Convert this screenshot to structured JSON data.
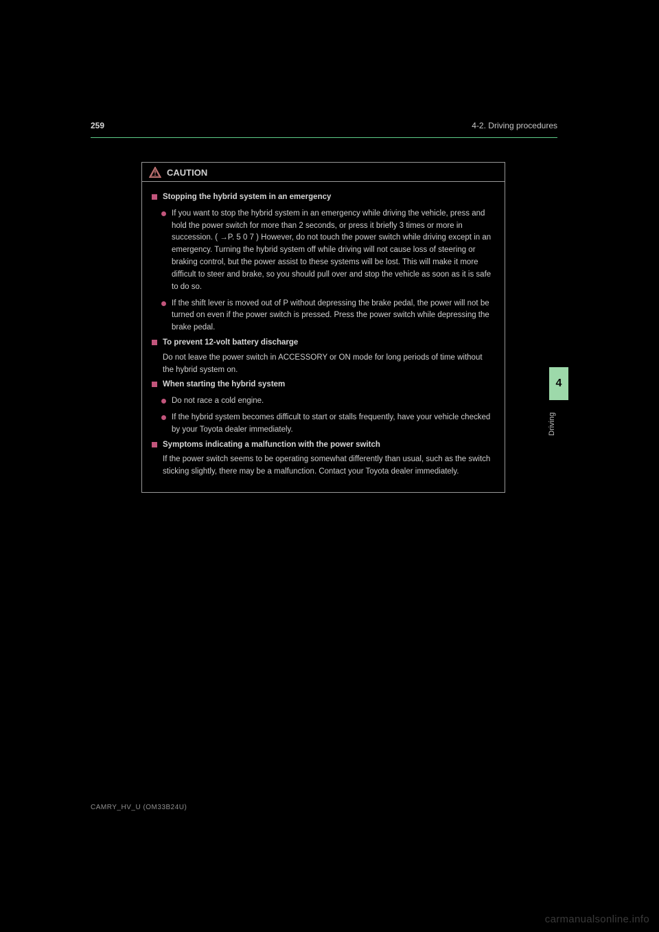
{
  "header": {
    "page_number": "259",
    "section_path": "4-2. Driving procedures"
  },
  "side_tab": {
    "number": "4",
    "label": "Driving"
  },
  "caution": {
    "heading": "CAUTION",
    "icon_color": "#cf7b7b",
    "border_color": "#9a9a9a",
    "accent_color": "#c2557c",
    "sections": [
      {
        "title": "Stopping the hybrid system in an emergency",
        "paragraphs": [],
        "bullets": [
          "If you want to stop the hybrid system in an emergency while driving the vehicle, press and hold the power switch for more than 2 seconds, or press it briefly 3 times or more in succession. ( →P. 5 0 7 )  \nHowever, do not touch the power switch while driving except in an emergency. Turning the hybrid system off while driving will not cause loss of steering or braking control, but the power assist to these systems will be lost. This will make it more difficult to steer and brake, so you should pull over and stop the vehicle as soon as it is safe to do so.",
          "If the shift lever is moved out of P without depressing the brake pedal, the power will not be turned on even if the power switch is pressed. Press the power switch while depressing the brake pedal."
        ]
      },
      {
        "title": "To prevent 12-volt battery discharge",
        "paragraphs": [
          "Do not leave the power switch in ACCESSORY or ON mode for long periods of time without the hybrid system on."
        ],
        "bullets": []
      },
      {
        "title": "When starting the hybrid system",
        "paragraphs": [],
        "bullets": [
          "Do not race a cold engine.",
          "If the hybrid system becomes difficult to start or stalls frequently, have your vehicle checked by your Toyota dealer immediately."
        ]
      },
      {
        "title": "Symptoms indicating a malfunction with the power switch",
        "paragraphs": [
          "If the power switch seems to be operating somewhat differently than usual, such as the switch sticking slightly, there may be a malfunction. Contact your Toyota dealer immediately."
        ],
        "bullets": []
      }
    ]
  },
  "footer": {
    "code": "CAMRY_HV_U (OM33B24U)"
  },
  "watermark": "carmanualsonline.info",
  "colors": {
    "green_rule": "#5fd08a",
    "side_tab_bg": "#9dd9aa",
    "text": "#cfcfcf",
    "background": "#000000"
  }
}
